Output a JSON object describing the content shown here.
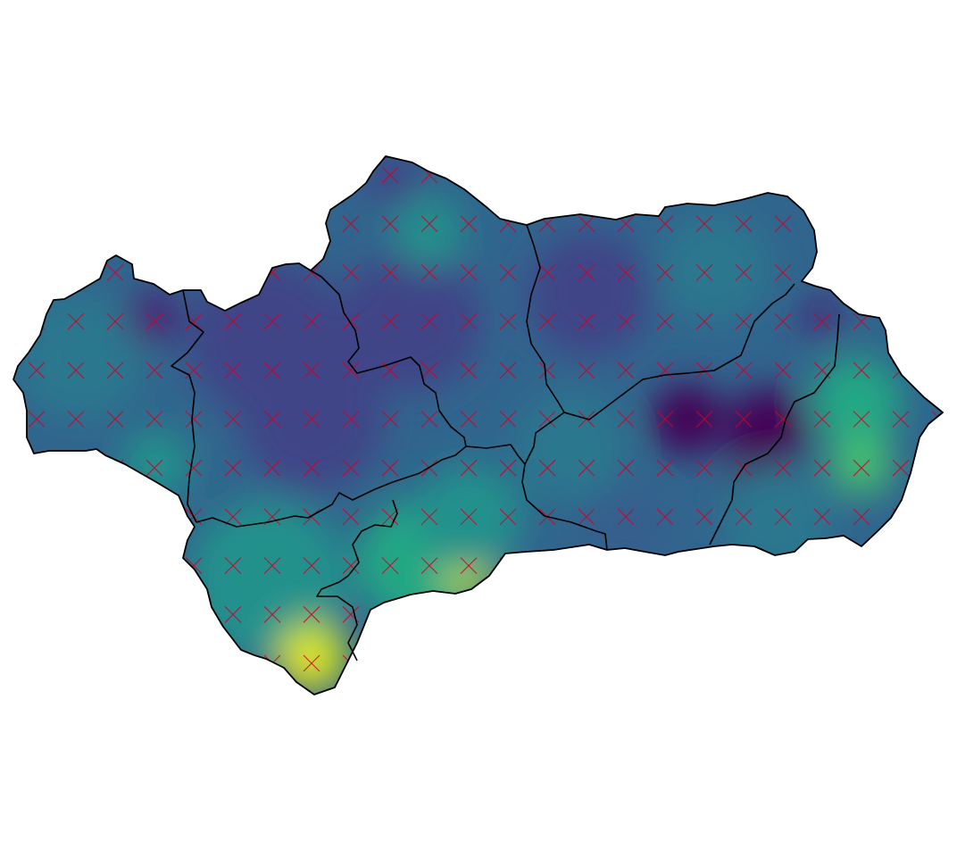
{
  "map": {
    "region": "",
    "colormap": "viridis",
    "marker_symbol": "x",
    "marker_color": "#d1002a",
    "boundary_color": "#000000",
    "palette": [
      "#440154",
      "#482475",
      "#414487",
      "#355f8d",
      "#2a788e",
      "#21918c",
      "#22a884",
      "#44bf70",
      "#7ad151",
      "#bddf26",
      "#fde725"
    ],
    "hotspots": [
      {
        "name": "tarifa-high",
        "level": 1.0
      },
      {
        "name": "malaga-coast-high",
        "level": 0.78
      },
      {
        "name": "almeria-coast-high",
        "level": 0.62
      },
      {
        "name": "granada-low",
        "level": 0.0
      },
      {
        "name": "huelva-north-low",
        "level": 0.12
      }
    ]
  }
}
